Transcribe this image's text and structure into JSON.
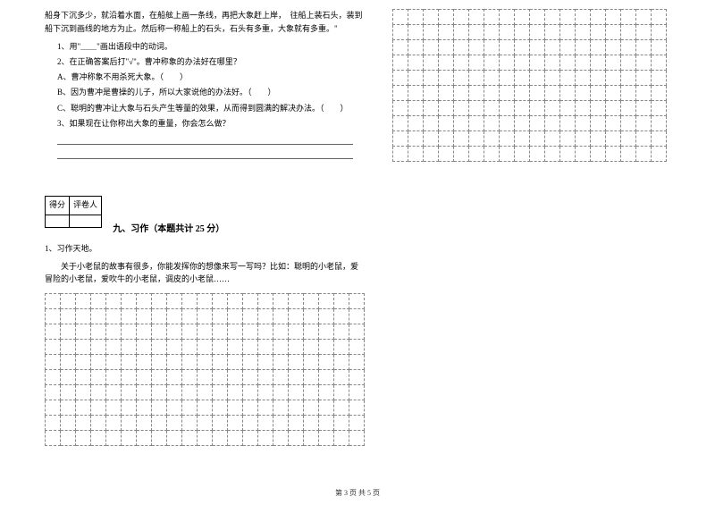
{
  "passage": "船身下沉多少，就沿着水面，在船舷上画一条线，再把大象赶上岸，　往船上装石头，装到船下沉到画线的地方为止。然后称一称船上的石头，石头有多重，大象就有多重。\"",
  "q1": "1、用\"＿＿\"画出语段中的动词。",
  "q2": "2、在正确答案后打\"√\"。曹冲称象的办法好在哪里？",
  "q2a": "A、曹冲称象不用杀死大象。（　　）",
  "q2b": "B、因为曹冲是曹操的儿子，所以大家说他的办法好。（　　）",
  "q2c": "C、聪明的曹冲让大象与石头产生等量的效果，从而得到圆满的解决办法。（　　）",
  "q3": "3、如果现在让你称出大象的重量，你会怎么做？",
  "score_label1": "得分",
  "score_label2": "评卷人",
  "section9_title": "九、习作（本题共计 25 分）",
  "essay_num": "1、习作天地。",
  "essay_prompt": "　　关于小老鼠的故事有很多，你能发挥你的想像来写一写吗？比如：聪明的小老鼠，爱冒险的小老鼠，爱吹牛的小老鼠，调皮的小老鼠……",
  "footer": "第 3 页 共 5 页",
  "left_grid": {
    "rows": 10,
    "cols": 21
  },
  "right_grid": {
    "rows": 10,
    "cols": 18
  }
}
